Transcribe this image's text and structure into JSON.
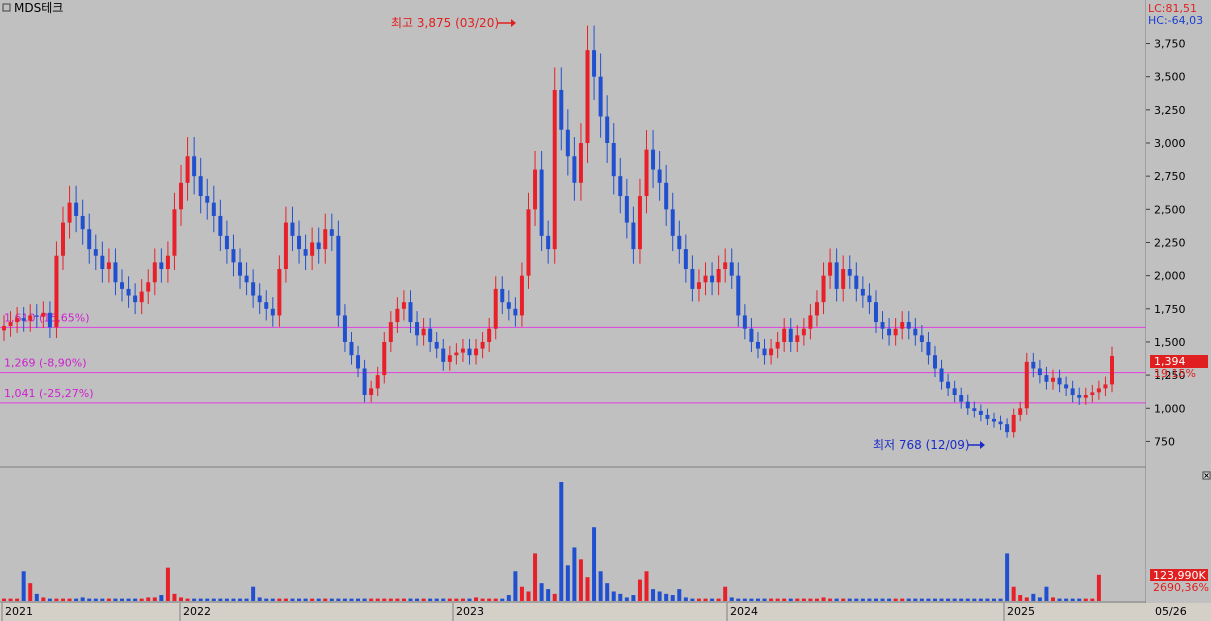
{
  "title": "MDS테크",
  "corner_icon": "window-icon",
  "close_icon": "close-icon",
  "stats": {
    "lc": "LC:81,51",
    "hc": "HC:-64,03"
  },
  "colors": {
    "bg": "#c0c0c0",
    "up": "#e8202a",
    "down": "#2050d0",
    "line": "#e040e0",
    "high_text": "#e02020",
    "low_text": "#1a2cc8",
    "price_box": "#e02020"
  },
  "current": {
    "price_label": "1,394",
    "price": 1394,
    "change_label": "19,15%"
  },
  "volume_box": {
    "volume_label": "123,990K",
    "ratio_label": "2690,36%"
  },
  "annotations": {
    "high": {
      "label": "최고 3,875 (03/20)",
      "price": 3875
    },
    "low": {
      "label": "최저 768 (12/09)",
      "price": 768
    }
  },
  "date_label": "05/26",
  "chart_data": {
    "type": "candlestick",
    "title": "MDS테크",
    "x_labels": [
      "2021",
      "2022",
      "2023",
      "2024",
      "2025"
    ],
    "y_ticks": [
      "3,750",
      "3,500",
      "3,250",
      "3,000",
      "2,750",
      "2,500",
      "2,250",
      "2,000",
      "1,750",
      "1,500",
      "1,250",
      "1,000",
      "750"
    ],
    "y_tick_values": [
      3750,
      3500,
      3250,
      3000,
      2750,
      2500,
      2250,
      2000,
      1750,
      1500,
      1250,
      1000,
      750
    ],
    "ylim": [
      610,
      3950
    ],
    "hlines": [
      {
        "price": 1610,
        "label": "1,610 (15,65%)"
      },
      {
        "price": 1269,
        "label": "1,269 (-8,90%)"
      },
      {
        "price": 1041,
        "label": "1,041 (-25,27%)"
      }
    ],
    "grid": false,
    "price_closes": [
      1620,
      1650,
      1680,
      1660,
      1700,
      1690,
      1720,
      1610,
      2150,
      2400,
      2550,
      2450,
      2350,
      2200,
      2150,
      2050,
      2100,
      1950,
      1900,
      1850,
      1800,
      1880,
      1950,
      2100,
      2050,
      2150,
      2500,
      2700,
      2900,
      2750,
      2600,
      2550,
      2450,
      2300,
      2200,
      2100,
      2000,
      1950,
      1850,
      1800,
      1750,
      1700,
      2050,
      2400,
      2300,
      2200,
      2150,
      2250,
      2200,
      2350,
      2300,
      1700,
      1500,
      1400,
      1300,
      1100,
      1150,
      1250,
      1500,
      1650,
      1750,
      1800,
      1650,
      1550,
      1600,
      1500,
      1450,
      1350,
      1400,
      1420,
      1450,
      1400,
      1450,
      1500,
      1600,
      1900,
      1800,
      1750,
      1700,
      2000,
      2500,
      2800,
      2300,
      2200,
      3400,
      3100,
      2900,
      2700,
      3000,
      3700,
      3500,
      3200,
      3000,
      2750,
      2600,
      2400,
      2200,
      2600,
      2950,
      2800,
      2700,
      2500,
      2300,
      2200,
      2050,
      1900,
      1950,
      2000,
      1950,
      2050,
      2100,
      2000,
      1700,
      1600,
      1500,
      1450,
      1400,
      1450,
      1500,
      1600,
      1500,
      1550,
      1600,
      1700,
      1800,
      2000,
      2100,
      1900,
      2050,
      2000,
      1900,
      1850,
      1800,
      1650,
      1600,
      1550,
      1600,
      1650,
      1600,
      1550,
      1500,
      1400,
      1300,
      1200,
      1150,
      1100,
      1050,
      1000,
      980,
      950,
      920,
      900,
      880,
      820,
      950,
      1000,
      1350,
      1300,
      1250,
      1200,
      1230,
      1180,
      1150,
      1100,
      1080,
      1100,
      1120,
      1150,
      1180,
      1394
    ],
    "volume_ylim": [
      0,
      100
    ],
    "volumes": [
      2,
      2,
      2,
      25,
      15,
      6,
      3,
      2,
      2,
      2,
      2,
      2,
      3,
      2,
      2,
      2,
      2,
      2,
      2,
      2,
      2,
      2,
      3,
      3,
      5,
      28,
      6,
      3,
      2,
      2,
      2,
      2,
      2,
      2,
      2,
      2,
      2,
      2,
      12,
      3,
      2,
      2,
      2,
      2,
      2,
      2,
      2,
      2,
      2,
      2,
      2,
      2,
      2,
      2,
      2,
      2,
      2,
      2,
      2,
      2,
      2,
      2,
      2,
      2,
      2,
      2,
      2,
      2,
      2,
      2,
      2,
      2,
      3,
      2,
      2,
      2,
      2,
      5,
      25,
      12,
      8,
      40,
      15,
      10,
      6,
      100,
      30,
      45,
      35,
      20,
      62,
      25,
      15,
      8,
      6,
      3,
      5,
      18,
      25,
      10,
      8,
      6,
      5,
      10,
      3,
      2,
      2,
      2,
      2,
      2,
      12,
      3,
      2,
      2,
      2,
      2,
      2,
      2,
      2,
      2,
      2,
      2,
      2,
      2,
      2,
      3,
      2,
      2,
      2,
      2,
      2,
      2,
      2,
      2,
      2,
      2,
      2,
      2,
      2,
      2,
      2,
      2,
      2,
      2,
      2,
      2,
      2,
      2,
      2,
      2,
      2,
      2,
      2,
      40,
      12,
      5,
      3,
      6,
      3,
      12,
      3,
      2,
      2,
      2,
      2,
      2,
      2,
      22
    ]
  }
}
